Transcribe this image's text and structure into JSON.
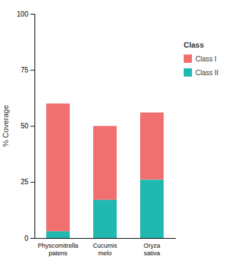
{
  "chart_data": {
    "type": "bar",
    "stacked": true,
    "categories": [
      "Physcomitrella\npatens",
      "Cucumis\nmelo",
      "Oryza\nsativa"
    ],
    "series": [
      {
        "name": "Class I",
        "color": "#F07070",
        "values": [
          57,
          33,
          30
        ]
      },
      {
        "name": "Class II",
        "color": "#20B8B0",
        "values": [
          3,
          17,
          26
        ]
      }
    ],
    "ylabel": "% Coverage",
    "ylim": [
      0,
      100
    ],
    "yticks": [
      0,
      25,
      50,
      75,
      100
    ],
    "grid": false,
    "legend": "right",
    "legend_title": "Class"
  }
}
